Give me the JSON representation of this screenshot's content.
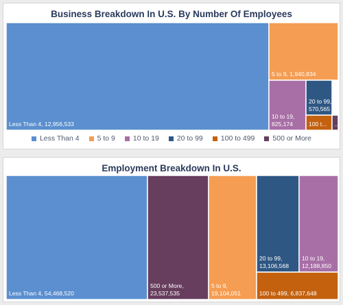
{
  "chart_data": [
    {
      "type": "treemap",
      "title": "Business Breakdown In U.S. By Number Of Employees",
      "legend_position": "bottom",
      "series": [
        {
          "name": "Less Than 4",
          "value": 12956533,
          "label": "Less Than 4, 12,956,533",
          "color": "#5b8fcf"
        },
        {
          "name": "5 to 9",
          "value": 1940834,
          "label": "5 to 9, 1,940,834",
          "color": "#f59d52"
        },
        {
          "name": "10 to 19",
          "value": 825174,
          "label": "10 to 19, 825,174",
          "color": "#a86fa6"
        },
        {
          "name": "20 to 99",
          "value": 570565,
          "label": "20 to 99, 570,565",
          "color": "#2f5783"
        },
        {
          "name": "100 to 499",
          "value": null,
          "label": "100 t...",
          "color": "#c4610f"
        },
        {
          "name": "500 or More",
          "value": null,
          "label": "...",
          "color": "#673e5e"
        }
      ],
      "legend": [
        "Less Than 4",
        "5 to 9",
        "10 to 19",
        "20 to 99",
        "100 to 499",
        "500 or More"
      ]
    },
    {
      "type": "treemap",
      "title": "Employment Breakdown In U.S.",
      "series": [
        {
          "name": "Less Than 4",
          "value": 54468520,
          "label": "Less Than 4, 54,468,520",
          "color": "#5b8fcf"
        },
        {
          "name": "500 or More",
          "value": 23537535,
          "label": "500 or More, 23,537,535",
          "color": "#673e5e"
        },
        {
          "name": "5 to 9",
          "value": 19104051,
          "label": "5 to 9, 19,104,051",
          "color": "#f59d52"
        },
        {
          "name": "20 to 99",
          "value": 13106568,
          "label": "20 to 99, 13,106,568",
          "color": "#2f5783"
        },
        {
          "name": "10 to 19",
          "value": 12188850,
          "label": "10 to 19, 12,188,850",
          "color": "#a86fa6"
        },
        {
          "name": "100 to 499",
          "value": 6837648,
          "label": "100 to 499, 6,837,648",
          "color": "#c4610f"
        }
      ]
    }
  ]
}
